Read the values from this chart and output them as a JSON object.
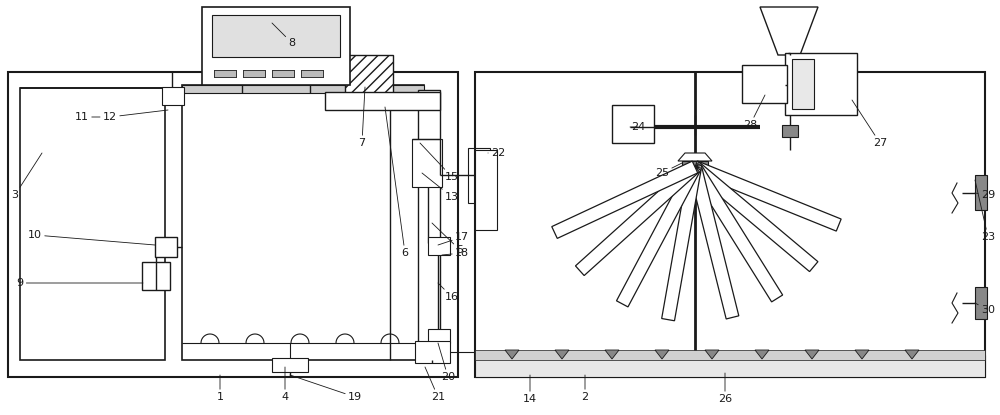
{
  "bg_color": "#ffffff",
  "line_color": "#1a1a1a",
  "fig_width": 10.0,
  "fig_height": 4.15,
  "lw": 1.0
}
